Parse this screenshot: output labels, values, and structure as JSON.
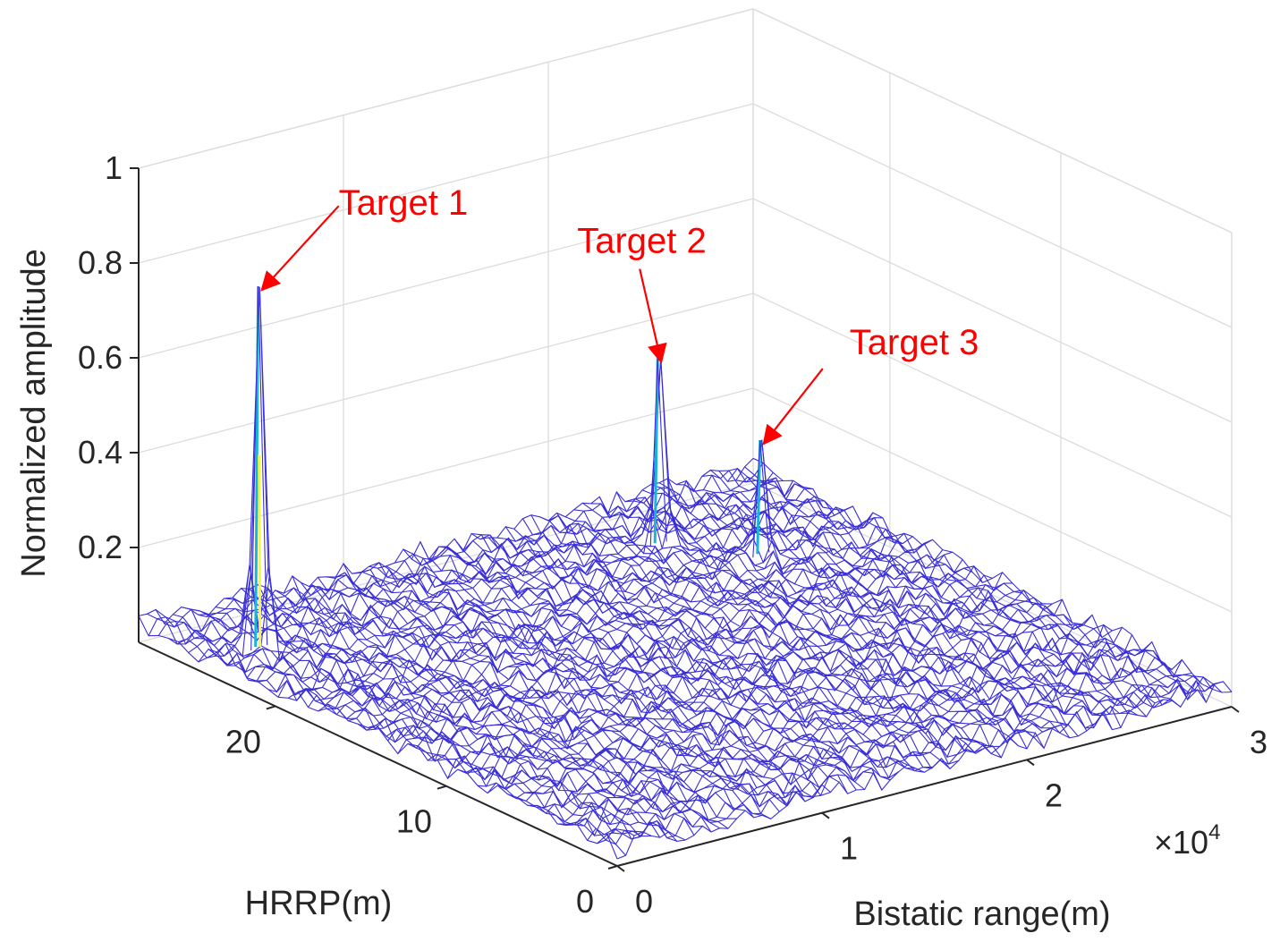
{
  "chart_data": {
    "type": "surface-mesh",
    "title": "",
    "xlabel": "Bistatic range(m)",
    "ylabel": "HRRP(m)",
    "zlabel": "Normalized amplitude",
    "x_multiplier": "×10",
    "x_multiplier_exponent": "4",
    "xlim": [
      0,
      30000
    ],
    "ylim": [
      0,
      28
    ],
    "zlim": [
      0,
      1
    ],
    "x_ticks": [
      "0",
      "1",
      "2",
      "3"
    ],
    "y_ticks": [
      "0",
      "10",
      "20"
    ],
    "z_ticks": [
      "0.2",
      "0.4",
      "0.6",
      "0.8",
      "1"
    ],
    "grid": true,
    "noise_floor": 0.06,
    "series": [
      {
        "label": "Target 1",
        "x": 2500,
        "y": 24,
        "value": 0.79
      },
      {
        "label": "Target 2",
        "x": 22000,
        "y": 24,
        "value": 0.42
      },
      {
        "label": "Target 3",
        "x": 24500,
        "y": 21,
        "value": 0.27
      }
    ],
    "colors": {
      "mesh": "#3a2fd6",
      "peak_high": "#f5f542",
      "peak_mid": "#19b5d8",
      "annotation": "#ff0000",
      "grid": "#dcdcdc",
      "axis": "#262626"
    }
  }
}
